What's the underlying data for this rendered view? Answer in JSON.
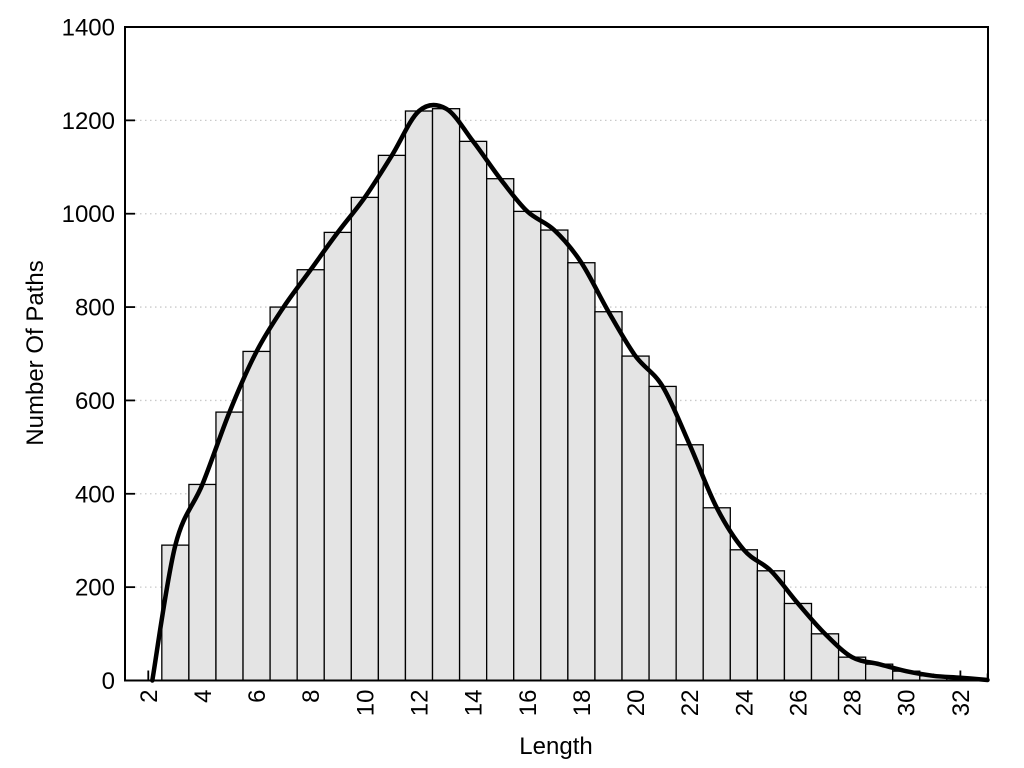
{
  "chart_data": {
    "type": "bar",
    "subtype": "histogram with smooth distribution curve overlay",
    "title": "",
    "xlabel": "Length",
    "ylabel": "Number Of Paths",
    "bar_width": 1,
    "bar_centers": [
      3,
      4,
      5,
      6,
      7,
      8,
      9,
      10,
      11,
      12,
      13,
      14,
      15,
      16,
      17,
      18,
      19,
      20,
      21,
      22,
      23,
      24,
      25,
      26,
      27,
      28,
      29,
      30,
      31,
      32
    ],
    "bar_values": [
      290,
      420,
      575,
      705,
      800,
      880,
      960,
      1035,
      1125,
      1220,
      1225,
      1155,
      1075,
      1005,
      965,
      895,
      790,
      695,
      630,
      505,
      370,
      280,
      235,
      165,
      100,
      50,
      35,
      20,
      10,
      6
    ],
    "curve_points": [
      [
        2.15,
        0
      ],
      [
        3,
        290
      ],
      [
        4,
        420
      ],
      [
        5,
        575
      ],
      [
        6,
        705
      ],
      [
        7,
        800
      ],
      [
        8,
        880
      ],
      [
        9,
        960
      ],
      [
        10,
        1035
      ],
      [
        11,
        1125
      ],
      [
        12,
        1220
      ],
      [
        13,
        1225
      ],
      [
        14,
        1155
      ],
      [
        15,
        1075
      ],
      [
        16,
        1005
      ],
      [
        17,
        965
      ],
      [
        18,
        895
      ],
      [
        19,
        790
      ],
      [
        20,
        695
      ],
      [
        21,
        630
      ],
      [
        22,
        505
      ],
      [
        23,
        370
      ],
      [
        24,
        280
      ],
      [
        25,
        235
      ],
      [
        26,
        165
      ],
      [
        27,
        100
      ],
      [
        28,
        50
      ],
      [
        29,
        35
      ],
      [
        30,
        20
      ],
      [
        31,
        10
      ],
      [
        32,
        6
      ],
      [
        33,
        1
      ]
    ],
    "xlim": [
      1.14,
      33.02
    ],
    "ylim": [
      0,
      1400
    ],
    "xticks_major": [
      2,
      4,
      6,
      8,
      10,
      12,
      14,
      16,
      18,
      20,
      22,
      24,
      26,
      28,
      30,
      32
    ],
    "xticks_minor": [
      3,
      5,
      7,
      9,
      11,
      13,
      15,
      17,
      19,
      21,
      23,
      25,
      27,
      29,
      31,
      33
    ],
    "yticks": [
      0,
      200,
      400,
      600,
      800,
      1000,
      1200,
      1400
    ],
    "grid": {
      "horizontal_at": [
        200,
        400,
        600,
        800,
        1000,
        1200
      ],
      "style": "dotted"
    },
    "legend": null,
    "x_tick_label_rotation_deg": -90,
    "colors": {
      "background": "#ffffff",
      "bar_fill": "#e4e4e4",
      "bar_stroke": "#000000",
      "curve": "#000000",
      "grid": "#c9c9c9",
      "frame": "#000000",
      "text": "#000000"
    }
  }
}
